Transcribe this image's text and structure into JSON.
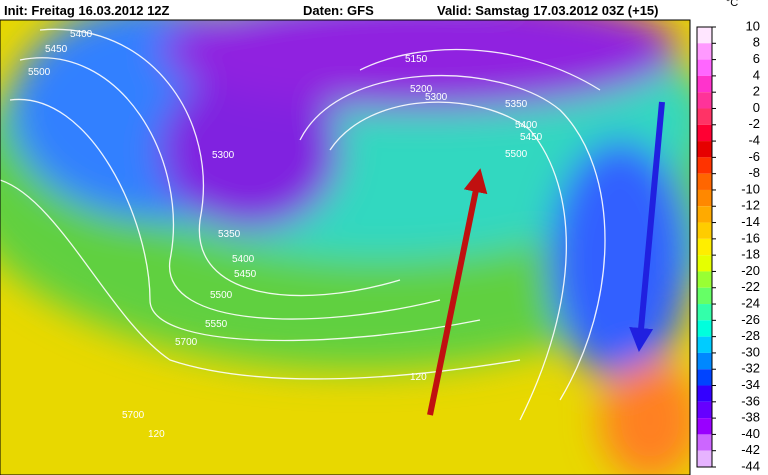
{
  "header": {
    "init": "Init: Freitag 16.03.2012 12Z",
    "source": "Daten: GFS",
    "valid": "Valid: Samstag 17.03.2012 03Z (+15)"
  },
  "map": {
    "contour_labels": [
      "5400",
      "5450",
      "5500",
      "5300",
      "5350",
      "5400",
      "5450",
      "5500",
      "5550",
      "5700",
      "5150",
      "5200",
      "5300",
      "5350",
      "5400",
      "5450",
      "5500",
      "5700",
      "120",
      "120"
    ]
  },
  "colorbar": {
    "unit": "°C",
    "ticks": [
      10,
      8,
      6,
      4,
      2,
      0,
      -2,
      -4,
      -6,
      -8,
      -10,
      -12,
      -14,
      -16,
      -18,
      -20,
      -22,
      -24,
      -26,
      -28,
      -30,
      -32,
      -34,
      -36,
      -38,
      -40,
      -42,
      -44
    ],
    "colors": [
      "#ffe6ff",
      "#ff99ff",
      "#ff66ff",
      "#ff33cc",
      "#ff3399",
      "#ff3366",
      "#ff0033",
      "#e60000",
      "#ff3300",
      "#ff6600",
      "#ff8800",
      "#ffaa00",
      "#ffcc00",
      "#ffee00",
      "#e6ff00",
      "#99ff33",
      "#66ff66",
      "#33ffaa",
      "#00ffdd",
      "#00ccff",
      "#0088ff",
      "#0044ff",
      "#3300ff",
      "#6600ff",
      "#9900ff",
      "#cc66ff",
      "#e6b3ff"
    ]
  }
}
